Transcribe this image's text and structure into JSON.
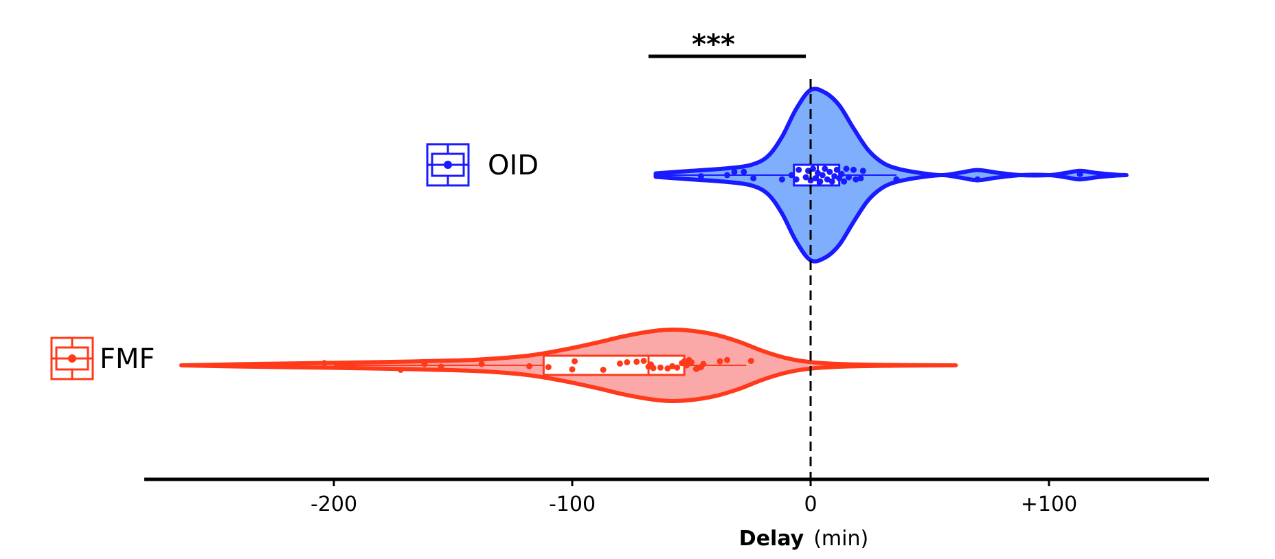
{
  "chart_data": {
    "type": "violin",
    "orientation": "horizontal",
    "xlabel": "Delay",
    "xlabel_unit": "(min)",
    "xlim": [
      -278,
      165
    ],
    "xticks": [
      {
        "value": -200,
        "label": "-200"
      },
      {
        "value": -100,
        "label": "-100"
      },
      {
        "value": 0,
        "label": "0"
      },
      {
        "value": 100,
        "label": "+100"
      }
    ],
    "reference_line": {
      "x": 0,
      "style": "dashed"
    },
    "significance": {
      "label": "***",
      "x_from": -68,
      "x_to": -2
    },
    "series": [
      {
        "name": "OID",
        "color": "#1a1aff",
        "fill": "#7eaefc",
        "range": [
          -65,
          132
        ],
        "quartiles": [
          -7,
          3,
          12
        ],
        "median": 3,
        "whiskers": [
          -65,
          36
        ],
        "density": [
          [
            -65,
            0.02
          ],
          [
            -50,
            0.05
          ],
          [
            -35,
            0.08
          ],
          [
            -25,
            0.12
          ],
          [
            -18,
            0.22
          ],
          [
            -12,
            0.45
          ],
          [
            -6,
            0.78
          ],
          [
            0,
            1.0
          ],
          [
            6,
            0.97
          ],
          [
            12,
            0.82
          ],
          [
            18,
            0.55
          ],
          [
            24,
            0.3
          ],
          [
            30,
            0.15
          ],
          [
            36,
            0.08
          ],
          [
            45,
            0.03
          ],
          [
            55,
            0.0
          ],
          [
            63,
            0.03
          ],
          [
            70,
            0.06
          ],
          [
            78,
            0.03
          ],
          [
            88,
            0.0
          ],
          [
            100,
            0.0
          ],
          [
            107,
            0.025
          ],
          [
            113,
            0.05
          ],
          [
            120,
            0.025
          ],
          [
            128,
            0.005
          ],
          [
            132,
            0.0
          ]
        ],
        "points": [
          [
            -46,
            0.01
          ],
          [
            -35,
            0.0
          ],
          [
            -32,
            -0.03
          ],
          [
            -28,
            -0.03
          ],
          [
            -24,
            0.03
          ],
          [
            -12,
            0.04
          ],
          [
            -8,
            0.0
          ],
          [
            -6,
            0.04
          ],
          [
            -5,
            -0.05
          ],
          [
            -2,
            0.02
          ],
          [
            -1,
            -0.04
          ],
          [
            0,
            0.05
          ],
          [
            1,
            -0.06
          ],
          [
            2,
            0.03
          ],
          [
            3,
            -0.02
          ],
          [
            4,
            0.06
          ],
          [
            5,
            0.0
          ],
          [
            6,
            -0.06
          ],
          [
            7,
            0.04
          ],
          [
            8,
            -0.03
          ],
          [
            9,
            0.06
          ],
          [
            10,
            0.01
          ],
          [
            11,
            -0.05
          ],
          [
            12,
            0.03
          ],
          [
            13,
            -0.01
          ],
          [
            14,
            0.06
          ],
          [
            15,
            -0.06
          ],
          [
            16,
            0.02
          ],
          [
            18,
            -0.05
          ],
          [
            19,
            0.04
          ],
          [
            21,
            0.03
          ],
          [
            22,
            -0.04
          ],
          [
            36,
            0.04
          ],
          [
            70,
            0.04
          ],
          [
            113,
            -0.01
          ]
        ]
      },
      {
        "name": "FMF",
        "color": "#ff3a1a",
        "fill": "#fba8a8",
        "range": [
          -264,
          58
        ],
        "quartiles": [
          -112,
          -68,
          -53
        ],
        "median": -68,
        "whiskers": [
          -200,
          -27
        ],
        "density": [
          [
            -264,
            0.0
          ],
          [
            -240,
            0.03
          ],
          [
            -210,
            0.06
          ],
          [
            -180,
            0.09
          ],
          [
            -160,
            0.12
          ],
          [
            -140,
            0.16
          ],
          [
            -120,
            0.26
          ],
          [
            -105,
            0.42
          ],
          [
            -90,
            0.63
          ],
          [
            -78,
            0.82
          ],
          [
            -66,
            0.96
          ],
          [
            -58,
            1.0
          ],
          [
            -50,
            0.97
          ],
          [
            -40,
            0.86
          ],
          [
            -30,
            0.66
          ],
          [
            -20,
            0.4
          ],
          [
            -10,
            0.2
          ],
          [
            0,
            0.09
          ],
          [
            15,
            0.03
          ],
          [
            35,
            0.01
          ],
          [
            58,
            0.0
          ]
        ],
        "points": [
          [
            -204,
            -0.05
          ],
          [
            -192,
            -0.02
          ],
          [
            -172,
            0.1
          ],
          [
            -162,
            -0.03
          ],
          [
            -155,
            0.03
          ],
          [
            -138,
            -0.03
          ],
          [
            -118,
            0.02
          ],
          [
            -110,
            0.04
          ],
          [
            -100,
            0.09
          ],
          [
            -99,
            -0.09
          ],
          [
            -87,
            0.1
          ],
          [
            -80,
            -0.04
          ],
          [
            -77,
            -0.07
          ],
          [
            -73,
            -0.08
          ],
          [
            -70,
            -0.1
          ],
          [
            -68,
            0.03
          ],
          [
            -67,
            -0.02
          ],
          [
            -66,
            0.06
          ],
          [
            -63,
            0.05
          ],
          [
            -60,
            0.07
          ],
          [
            -58,
            0.02
          ],
          [
            -56,
            0.05
          ],
          [
            -54,
            -0.05
          ],
          [
            -53,
            -0.09
          ],
          [
            -52,
            0.0
          ],
          [
            -51,
            -0.12
          ],
          [
            -50,
            -0.07
          ],
          [
            -48,
            0.08
          ],
          [
            -47,
            0.05
          ],
          [
            -46,
            0.04
          ],
          [
            -45,
            -0.03
          ],
          [
            -38,
            -0.09
          ],
          [
            -35,
            -0.12
          ],
          [
            -25,
            -0.1
          ]
        ]
      }
    ],
    "legend": [
      {
        "label": "OID",
        "color": "#1a1aff"
      },
      {
        "label": "FMF",
        "color": "#ff3a1a"
      }
    ],
    "grid": false
  }
}
